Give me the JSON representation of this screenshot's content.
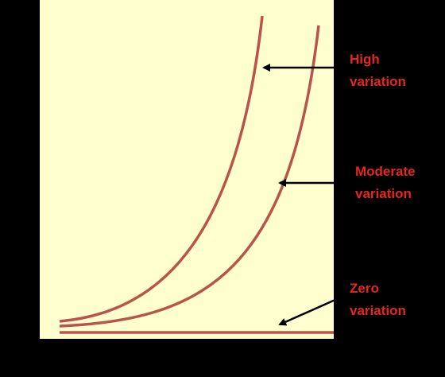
{
  "labels": [
    {
      "lines": [
        "High",
        "variation"
      ]
    },
    {
      "lines": [
        "Moderate",
        "variation"
      ]
    },
    {
      "lines": [
        "Zero",
        "variation"
      ]
    }
  ]
}
